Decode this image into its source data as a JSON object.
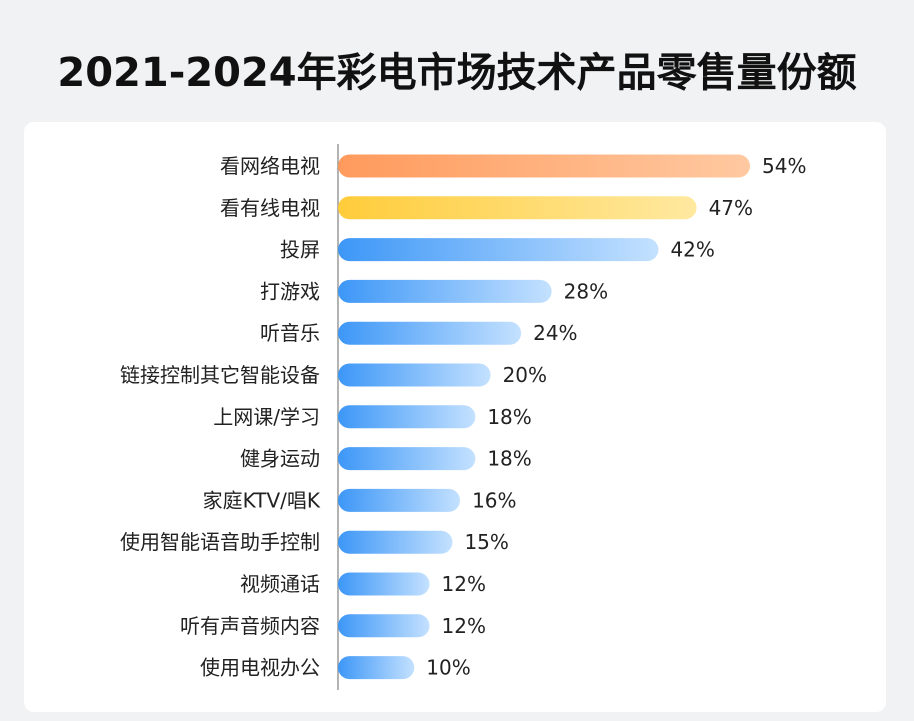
{
  "title": "2021-2024年彩电市场技术产品零售量份额",
  "colors": {
    "background": "#f1f2f4",
    "card": "#ffffff",
    "axis": "#9a9a9a",
    "bar_orange": [
      "#ff9a5c",
      "#ffc9a1"
    ],
    "bar_yellow": [
      "#ffcc3a",
      "#ffe9a0"
    ],
    "bar_blue": [
      "#3d97f7",
      "#c4e1ff"
    ]
  },
  "chart_data": {
    "type": "bar",
    "orientation": "horizontal",
    "title": "2021-2024年彩电市场技术产品零售量份额",
    "xlabel": "",
    "ylabel": "",
    "xlim": [
      0,
      54
    ],
    "grid": false,
    "categories": [
      "看网络电视",
      "看有线电视",
      "投屏",
      "打游戏",
      "听音乐",
      "链接控制其它智能设备",
      "上网课/学习",
      "健身运动",
      "家庭KTV/唱K",
      "使用智能语音助手控制",
      "视频通话",
      "听有声音频内容",
      "使用电视办公"
    ],
    "values": [
      54,
      47,
      42,
      28,
      24,
      20,
      18,
      18,
      16,
      15,
      12,
      12,
      10
    ],
    "value_labels": [
      "54%",
      "47%",
      "42%",
      "28%",
      "24%",
      "20%",
      "18%",
      "18%",
      "16%",
      "15%",
      "12%",
      "12%",
      "10%"
    ],
    "bar_colors": [
      "orange",
      "yellow",
      "blue",
      "blue",
      "blue",
      "blue",
      "blue",
      "blue",
      "blue",
      "blue",
      "blue",
      "blue",
      "blue"
    ]
  }
}
